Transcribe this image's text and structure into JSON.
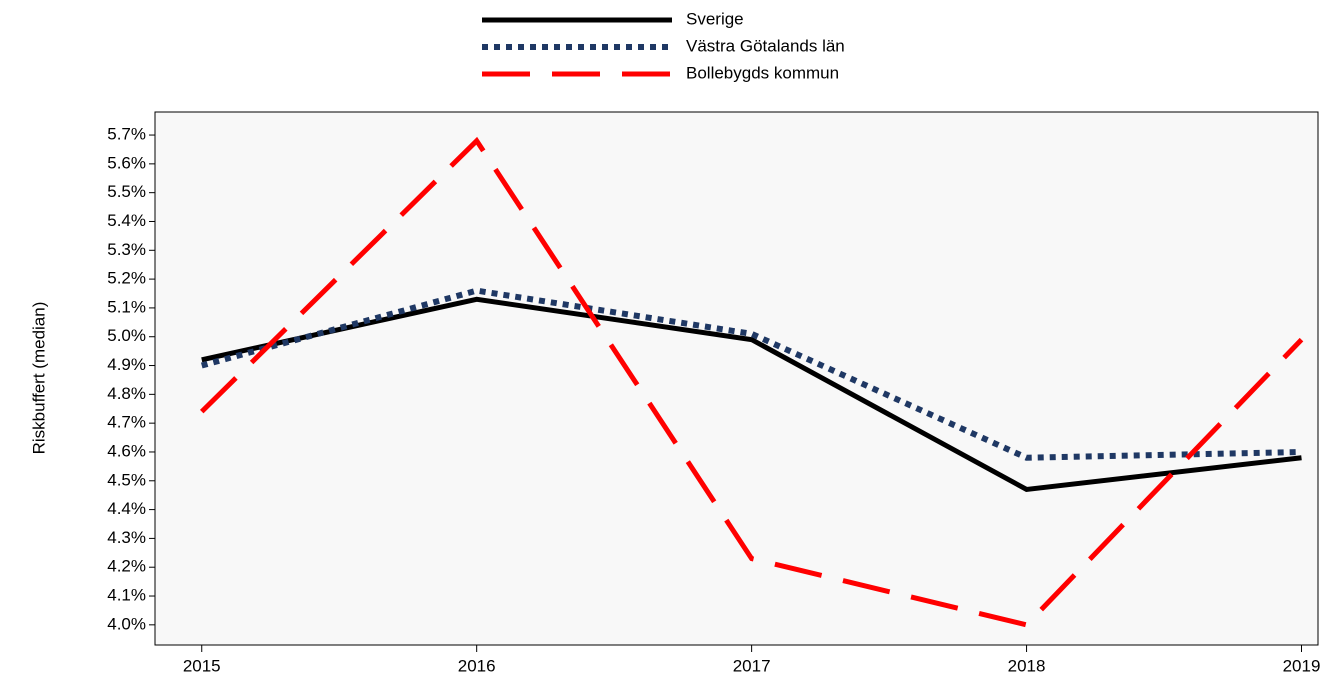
{
  "chart_data": {
    "type": "line",
    "y_label": "Riskbuffert (median)",
    "x": [
      2015,
      2016,
      2017,
      2018,
      2019
    ],
    "xlim": [
      2014.83,
      2019.06
    ],
    "xticks": [
      2015,
      2016,
      2017,
      2018,
      2019
    ],
    "ylim": [
      3.93,
      5.78
    ],
    "yticks": [
      {
        "value": 4.0,
        "label": "4.0%"
      },
      {
        "value": 4.1,
        "label": "4.1%"
      },
      {
        "value": 4.2,
        "label": "4.2%"
      },
      {
        "value": 4.3,
        "label": "4.3%"
      },
      {
        "value": 4.4,
        "label": "4.4%"
      },
      {
        "value": 4.5,
        "label": "4.5%"
      },
      {
        "value": 4.6,
        "label": "4.6%"
      },
      {
        "value": 4.7,
        "label": "4.7%"
      },
      {
        "value": 4.8,
        "label": "4.8%"
      },
      {
        "value": 4.9,
        "label": "4.9%"
      },
      {
        "value": 5.0,
        "label": "5.0%"
      },
      {
        "value": 5.1,
        "label": "5.1%"
      },
      {
        "value": 5.2,
        "label": "5.2%"
      },
      {
        "value": 5.3,
        "label": "5.3%"
      },
      {
        "value": 5.4,
        "label": "5.4%"
      },
      {
        "value": 5.5,
        "label": "5.5%"
      },
      {
        "value": 5.6,
        "label": "5.6%"
      },
      {
        "value": 5.7,
        "label": "5.7%"
      }
    ],
    "grid": false,
    "legend": "top",
    "series": [
      {
        "name": "Sverige",
        "color": "#000000",
        "dash": "solid",
        "values": [
          4.92,
          5.13,
          4.99,
          4.47,
          4.58
        ]
      },
      {
        "name": "Västra Götalands län",
        "color": "#1f3864",
        "dash": "dotted",
        "values": [
          4.9,
          5.16,
          5.01,
          4.58,
          4.6
        ]
      },
      {
        "name": "Bollebygds kommun",
        "color": "#ff0000",
        "dash": "dashed",
        "values": [
          4.74,
          5.68,
          4.23,
          4.0,
          4.99
        ]
      }
    ]
  }
}
